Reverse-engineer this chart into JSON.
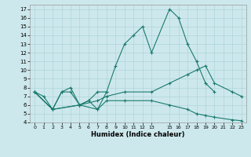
{
  "xlabel": "Humidex (Indice chaleur)",
  "bg_color": "#cde8ec",
  "grid_color": "#aed4d8",
  "line_color": "#1a7a6e",
  "xlim": [
    -0.5,
    23.5
  ],
  "ylim": [
    4,
    17.5
  ],
  "xticks": [
    0,
    1,
    2,
    3,
    4,
    5,
    6,
    7,
    8,
    9,
    10,
    11,
    12,
    13,
    15,
    16,
    17,
    18,
    19,
    20,
    21,
    22,
    23
  ],
  "yticks": [
    4,
    5,
    6,
    7,
    8,
    9,
    10,
    11,
    12,
    13,
    14,
    15,
    16,
    17
  ],
  "lines": [
    {
      "x": [
        0,
        1,
        2,
        3,
        4,
        5,
        6,
        7,
        8,
        9,
        10,
        11,
        12,
        13,
        15,
        16,
        17,
        18,
        19,
        20
      ],
      "y": [
        7.5,
        7.0,
        5.5,
        7.5,
        8.0,
        6.0,
        6.5,
        5.5,
        7.5,
        10.5,
        13.0,
        14.0,
        15.0,
        12.0,
        17.0,
        16.0,
        13.0,
        11.0,
        8.5,
        7.5
      ]
    },
    {
      "x": [
        0,
        2,
        3,
        4,
        5,
        6,
        7,
        8
      ],
      "y": [
        7.5,
        5.5,
        7.5,
        7.5,
        6.0,
        6.5,
        7.5,
        7.5
      ]
    },
    {
      "x": [
        0,
        2,
        5,
        7,
        8,
        10,
        13,
        15,
        17,
        18,
        19,
        20,
        22,
        23
      ],
      "y": [
        7.5,
        5.5,
        6.0,
        6.5,
        7.0,
        7.5,
        7.5,
        8.5,
        9.5,
        10.0,
        10.5,
        8.5,
        7.5,
        7.0
      ]
    },
    {
      "x": [
        0,
        2,
        5,
        7,
        8,
        10,
        13,
        15,
        17,
        18,
        19,
        20,
        22,
        23
      ],
      "y": [
        7.5,
        5.5,
        6.0,
        5.5,
        6.5,
        6.5,
        6.5,
        6.0,
        5.5,
        5.0,
        4.8,
        4.6,
        4.3,
        4.2
      ]
    }
  ]
}
